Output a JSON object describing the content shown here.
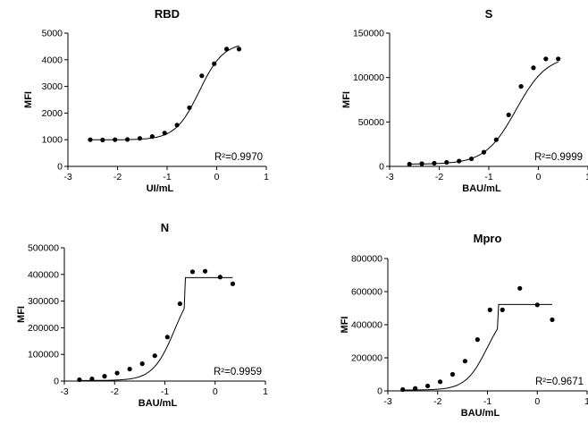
{
  "chart_data": [
    {
      "type": "scatter",
      "title": "RBD",
      "xlabel": "UI/mL",
      "ylabel": "MFI",
      "xlim": [
        -3,
        1
      ],
      "ylim": [
        0,
        5000
      ],
      "xticks": [
        "-3",
        "-2",
        "-1",
        "0",
        "1"
      ],
      "yticks": [
        "0",
        "1000",
        "2000",
        "3000",
        "4000",
        "5000"
      ],
      "annotation": "R²=0.9970",
      "fit": "4PL",
      "series": [
        {
          "x": [
            -2.55,
            -2.3,
            -2.05,
            -1.8,
            -1.55,
            -1.3,
            -1.05,
            -0.8,
            -0.55,
            -0.3,
            -0.05,
            0.2,
            0.45
          ],
          "y": [
            1000,
            990,
            1000,
            1010,
            1050,
            1120,
            1250,
            1550,
            2200,
            3400,
            3850,
            4400,
            4400
          ]
        }
      ],
      "fit_curve": {
        "bottom": 995,
        "top": 4650,
        "logEC50": -0.35,
        "hill": 1.8
      }
    },
    {
      "type": "scatter",
      "title": "S",
      "xlabel": "BAU/mL",
      "ylabel": "MFI",
      "xlim": [
        -3,
        1
      ],
      "ylim": [
        0,
        150000
      ],
      "xticks": [
        "-3",
        "-2",
        "-1",
        "0",
        "1"
      ],
      "yticks": [
        "0",
        "50000",
        "100000",
        "150000"
      ],
      "annotation": "R²=0.9999",
      "fit": "4PL",
      "series": [
        {
          "x": [
            -2.6,
            -2.35,
            -2.1,
            -1.85,
            -1.6,
            -1.35,
            -1.1,
            -0.85,
            -0.6,
            -0.35,
            -0.1,
            0.15,
            0.4
          ],
          "y": [
            2500,
            3000,
            3500,
            4500,
            6000,
            8500,
            16000,
            30000,
            58000,
            90000,
            111000,
            121000,
            121000
          ]
        }
      ],
      "fit_curve": {
        "bottom": 2500,
        "top": 125000,
        "logEC50": -0.45,
        "hill": 1.4
      }
    },
    {
      "type": "scatter",
      "title": "N",
      "xlabel": "BAU/mL",
      "ylabel": "MFI",
      "xlim": [
        -3,
        1
      ],
      "ylim": [
        0,
        500000
      ],
      "xticks": [
        "-3",
        "-2",
        "-1",
        "0",
        "1"
      ],
      "yticks": [
        "0",
        "100000",
        "200000",
        "300000",
        "400000",
        "500000"
      ],
      "annotation": "R²=0.9959",
      "fit": "4PL",
      "series": [
        {
          "x": [
            -2.7,
            -2.45,
            -2.2,
            -1.95,
            -1.7,
            -1.45,
            -1.2,
            -0.95,
            -0.7,
            -0.45,
            -0.2,
            0.1,
            0.35
          ],
          "y": [
            5000,
            8000,
            18000,
            30000,
            45000,
            65000,
            95000,
            165000,
            290000,
            410000,
            412000,
            390000,
            365000
          ]
        }
      ],
      "fit_curve": {
        "bottom": 2000,
        "top": 388000,
        "logEC50": -0.8,
        "hill": 2.0,
        "cap": true
      }
    },
    {
      "type": "scatter",
      "title": "Mpro",
      "xlabel": "BAU/mL",
      "ylabel": "MFI",
      "xlim": [
        -3,
        1
      ],
      "ylim": [
        0,
        800000
      ],
      "xticks": [
        "-3",
        "-2",
        "-1",
        "0",
        "1"
      ],
      "yticks": [
        "0",
        "200000",
        "400000",
        "600000",
        "800000"
      ],
      "annotation": "R²=0.9671",
      "fit": "4PL",
      "series": [
        {
          "x": [
            -2.7,
            -2.45,
            -2.2,
            -1.95,
            -1.7,
            -1.45,
            -1.2,
            -0.95,
            -0.7,
            -0.35,
            0.0,
            0.3
          ],
          "y": [
            8000,
            15000,
            30000,
            55000,
            100000,
            180000,
            310000,
            490000,
            490000,
            620000,
            520000,
            430000
          ]
        }
      ],
      "fit_curve": {
        "bottom": 5000,
        "top": 522000,
        "logEC50": -1.0,
        "hill": 2.0,
        "cap": true
      }
    }
  ]
}
